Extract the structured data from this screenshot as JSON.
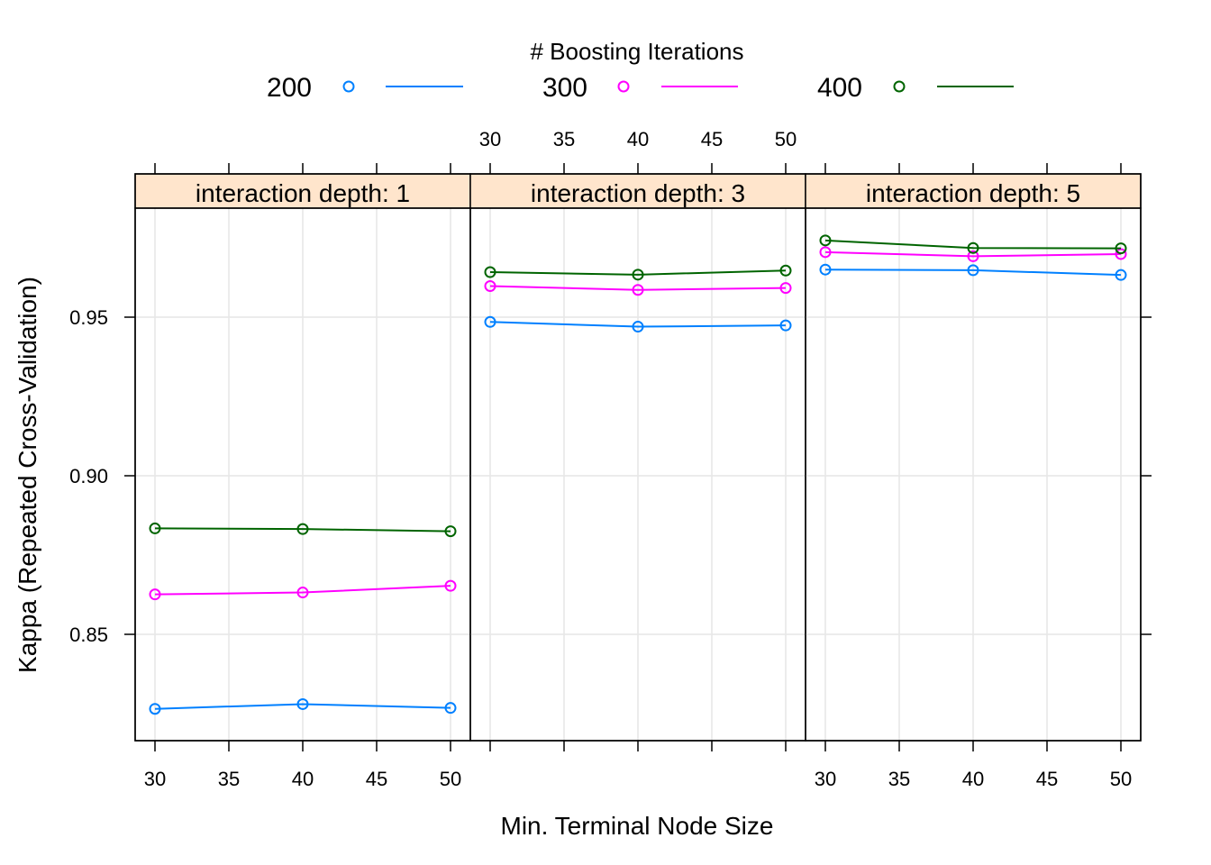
{
  "chart_data": {
    "type": "line",
    "xlabel": "Min. Terminal Node Size",
    "ylabel": "Kappa (Repeated Cross-Validation)",
    "x": [
      30,
      40,
      50
    ],
    "x_ticks": [
      "30",
      "35",
      "40",
      "45",
      "50"
    ],
    "y_ticks": [
      "0.85",
      "0.90",
      "0.95"
    ],
    "xlim": [
      28.6,
      51.4
    ],
    "ylim": [
      0.8165,
      0.9955
    ],
    "grid": true,
    "legend": {
      "title": "# Boosting Iterations",
      "placement": "top"
    },
    "panels": [
      {
        "strip": "interaction depth: 1",
        "series": [
          {
            "name": "200",
            "color": "#0080ff",
            "values": [
              0.8265,
              0.828,
              0.8268
            ]
          },
          {
            "name": "300",
            "color": "#ff00ff",
            "values": [
              0.8626,
              0.8632,
              0.8653
            ]
          },
          {
            "name": "400",
            "color": "#006400",
            "values": [
              0.8834,
              0.8832,
              0.8825
            ]
          }
        ]
      },
      {
        "strip": "interaction depth: 3",
        "series": [
          {
            "name": "200",
            "color": "#0080ff",
            "values": [
              0.9485,
              0.947,
              0.9474
            ]
          },
          {
            "name": "300",
            "color": "#ff00ff",
            "values": [
              0.9598,
              0.9586,
              0.9592
            ]
          },
          {
            "name": "400",
            "color": "#006400",
            "values": [
              0.9642,
              0.9634,
              0.9647
            ]
          }
        ]
      },
      {
        "strip": "interaction depth: 5",
        "series": [
          {
            "name": "200",
            "color": "#0080ff",
            "values": [
              0.965,
              0.9648,
              0.9633
            ]
          },
          {
            "name": "300",
            "color": "#ff00ff",
            "values": [
              0.9705,
              0.9692,
              0.9699
            ]
          },
          {
            "name": "400",
            "color": "#006400",
            "values": [
              0.9742,
              0.9718,
              0.9717
            ]
          }
        ]
      }
    ],
    "colors": {
      "strip_bg": "#ffe5cc",
      "grid": "#e6e6e6",
      "frame": "#000000"
    }
  }
}
